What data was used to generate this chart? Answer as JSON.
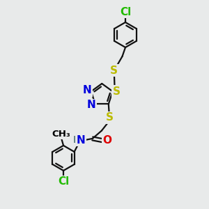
{
  "bg_color": "#e8eaea",
  "atom_colors": {
    "C": "#000000",
    "N": "#0000dd",
    "O": "#dd0000",
    "S": "#bbbb00",
    "Cl": "#22bb00",
    "NH": "#557777",
    "H": "#557777"
  },
  "bond_color": "#111111",
  "bond_width": 1.6,
  "font_size": 11,
  "font_size_small": 9.5,
  "title": ""
}
